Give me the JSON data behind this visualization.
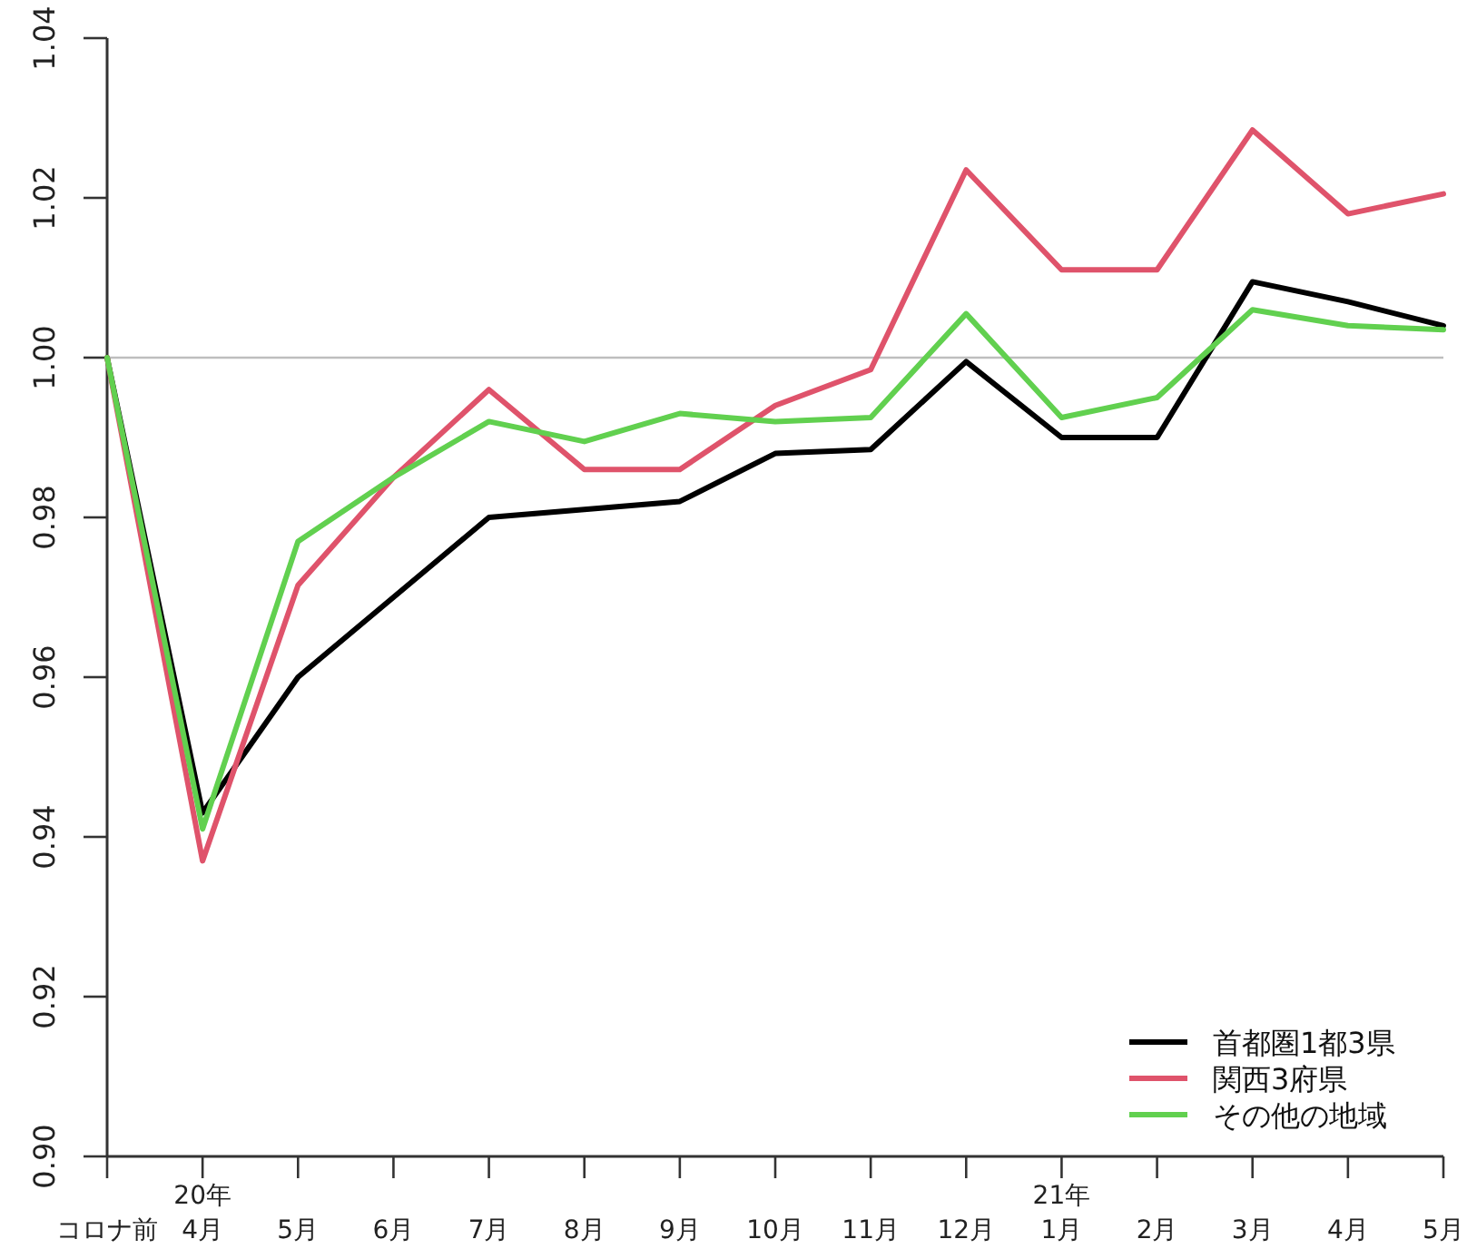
{
  "chart_data": {
    "type": "line",
    "categories": [
      "コロナ前",
      "20年\n4月",
      "5月",
      "6月",
      "7月",
      "8月",
      "9月",
      "10月",
      "11月",
      "12月",
      "21年\n1月",
      "2月",
      "3月",
      "4月",
      "5月"
    ],
    "series": [
      {
        "name": "首都圏1都3県",
        "color": "#000000",
        "values": [
          1.0,
          0.943,
          0.96,
          0.97,
          0.98,
          0.981,
          0.982,
          0.988,
          0.9885,
          0.9995,
          0.99,
          0.99,
          1.0095,
          1.007,
          1.004
        ]
      },
      {
        "name": "関西3府県",
        "color": "#df536b",
        "values": [
          1.0,
          0.937,
          0.9715,
          0.985,
          0.996,
          0.986,
          0.986,
          0.994,
          0.9985,
          1.0235,
          1.011,
          1.011,
          1.0285,
          1.018,
          1.0205
        ]
      },
      {
        "name": "その他の地域",
        "color": "#61d04f",
        "values": [
          1.0,
          0.941,
          0.977,
          0.985,
          0.992,
          0.9895,
          0.993,
          0.992,
          0.9925,
          1.0055,
          0.9925,
          0.995,
          1.006,
          1.004,
          1.0035
        ]
      }
    ],
    "ylim": [
      0.9,
      1.04
    ],
    "yticks": [
      {
        "value": 0.9,
        "label": "0.90"
      },
      {
        "value": 0.92,
        "label": "0.92"
      },
      {
        "value": 0.94,
        "label": "0.94"
      },
      {
        "value": 0.96,
        "label": "0.96"
      },
      {
        "value": 0.98,
        "label": "0.98"
      },
      {
        "value": 1.0,
        "label": "1.00"
      },
      {
        "value": 1.02,
        "label": "1.02"
      },
      {
        "value": 1.04,
        "label": "1.04"
      }
    ],
    "ref_lines": [
      {
        "axis": "y",
        "value": 1.0,
        "color": "#bebebe"
      }
    ],
    "grid": false,
    "legend": "bottom right",
    "marker": "none",
    "line_style": "solid"
  }
}
